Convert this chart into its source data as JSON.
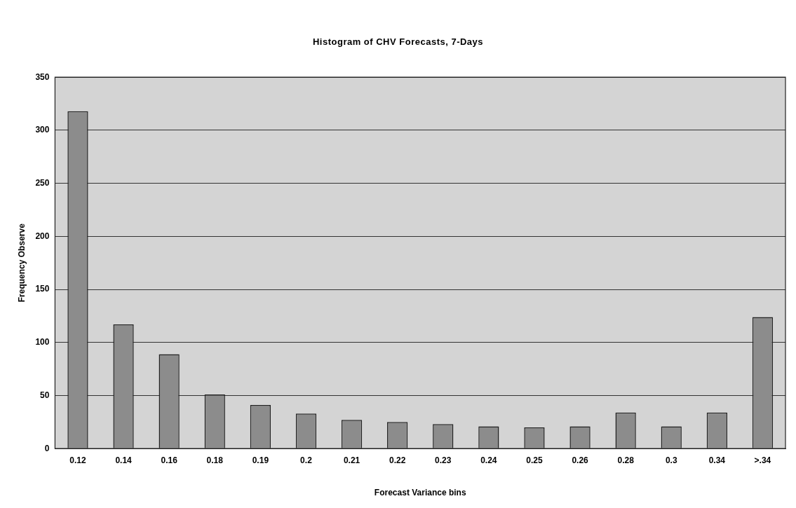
{
  "chart_data": {
    "type": "bar",
    "title": "Histogram of CHV Forecasts, 7-Days",
    "xlabel": "Forecast Variance bins",
    "ylabel": "Frequency Observe",
    "categories": [
      "0.12",
      "0.14",
      "0.16",
      "0.18",
      "0.19",
      "0.2",
      "0.21",
      "0.22",
      "0.23",
      "0.24",
      "0.25",
      "0.26",
      "0.28",
      "0.3",
      "0.34",
      ">.34"
    ],
    "values": [
      318,
      117,
      89,
      51,
      41,
      33,
      27,
      25,
      23,
      21,
      20,
      21,
      34,
      21,
      34,
      124
    ],
    "color": "#8c8c8c",
    "ylim": [
      0,
      350
    ],
    "yticks": [
      0,
      50,
      100,
      150,
      200,
      250,
      300,
      350
    ],
    "grid": "y",
    "legend": false
  }
}
